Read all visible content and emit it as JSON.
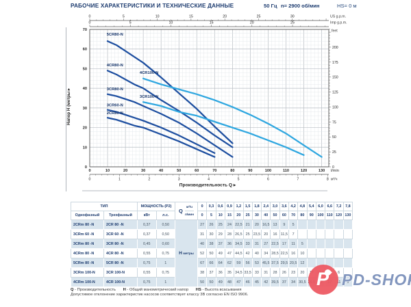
{
  "header": {
    "title": "РАБОЧИЕ ХАРАКТЕРИСТИКИ И ТЕХНИЧЕСКИЕ ДАННЫЕ",
    "frequency": "50 Гц",
    "speed": "n= 2900 об/мин",
    "suction": "HS= 0 м"
  },
  "chart": {
    "y_title": "Напор H (метры ▸",
    "x_title": "Производительность Q ▸",
    "unit_us": "US g.p.m.",
    "unit_imp": "Imp g.p.m.",
    "unit_feet": "feet",
    "unit_lmin": "l/min",
    "unit_m3h": "м³/ч"
  },
  "chart_data": {
    "type": "line",
    "x_unit": "l/min",
    "y_unit": "m",
    "x_range": [
      0,
      134
    ],
    "y_range": [
      0,
      70
    ],
    "x_ticks_lmin": [
      0,
      10,
      20,
      30,
      40,
      50,
      60,
      70,
      80,
      90,
      100,
      110,
      120,
      130
    ],
    "y_ticks_m": [
      0,
      10,
      20,
      30,
      40,
      50,
      60,
      70
    ],
    "secondary_axes": {
      "us_gpm_max": 30,
      "imp_gpm_max": 25,
      "feet_max": 200,
      "m3h_max": 8
    },
    "grid": "minor every 2 l/min and 2 m, major every 10",
    "series": [
      {
        "name": "5CR80-N",
        "color": "#1e4fa0",
        "label_at": [
          9.5,
          66.8
        ],
        "points": [
          [
            10,
            64
          ],
          [
            15,
            62
          ],
          [
            20,
            59
          ],
          [
            25,
            56
          ],
          [
            30,
            53
          ],
          [
            40,
            45.5
          ],
          [
            50,
            37.5
          ],
          [
            60,
            29.5
          ],
          [
            70,
            20.5
          ],
          [
            80,
            12
          ]
        ]
      },
      {
        "name": "4CR80-N",
        "color": "#1e4fa0",
        "label_at": [
          9.5,
          51.2
        ],
        "points": [
          [
            10,
            49
          ],
          [
            15,
            47
          ],
          [
            20,
            44.5
          ],
          [
            25,
            42
          ],
          [
            30,
            40
          ],
          [
            40,
            34
          ],
          [
            50,
            28.5
          ],
          [
            60,
            22.5
          ],
          [
            70,
            16
          ],
          [
            80,
            10
          ]
        ]
      },
      {
        "name": "3CR80-N",
        "color": "#1e4fa0",
        "label_at": [
          9.5,
          39.0
        ],
        "points": [
          [
            10,
            37
          ],
          [
            15,
            36
          ],
          [
            20,
            34.5
          ],
          [
            25,
            33
          ],
          [
            30,
            31
          ],
          [
            40,
            27
          ],
          [
            50,
            22.5
          ],
          [
            60,
            17
          ],
          [
            70,
            11
          ],
          [
            80,
            5
          ]
        ]
      },
      {
        "name": "3CR60-N",
        "color": "#1e4fa0",
        "label_at": [
          9.5,
          30.8
        ],
        "points": [
          [
            10,
            29
          ],
          [
            15,
            28
          ],
          [
            20,
            26.5
          ],
          [
            25,
            25
          ],
          [
            30,
            23.5
          ],
          [
            40,
            20
          ],
          [
            50,
            16
          ],
          [
            60,
            11.5
          ],
          [
            70,
            7
          ]
        ]
      },
      {
        "name": "2CR80-N",
        "color": "#1e4fa0",
        "label_at": [
          9.5,
          26.8
        ],
        "points": [
          [
            10,
            25
          ],
          [
            15,
            24
          ],
          [
            20,
            22.5
          ],
          [
            25,
            21
          ],
          [
            30,
            20
          ],
          [
            40,
            16.5
          ],
          [
            50,
            13
          ],
          [
            60,
            9
          ],
          [
            70,
            5
          ]
        ]
      },
      {
        "name": "4CR100-N",
        "color": "#2fa7e0",
        "label_at": [
          28,
          47.3
        ],
        "points": [
          [
            30,
            45
          ],
          [
            40,
            42
          ],
          [
            50,
            39.5
          ],
          [
            60,
            37
          ],
          [
            70,
            34
          ],
          [
            80,
            30.5
          ],
          [
            90,
            26.5
          ],
          [
            100,
            22
          ],
          [
            110,
            17
          ],
          [
            120,
            11
          ],
          [
            130,
            5
          ]
        ]
      },
      {
        "name": "3CR100-N",
        "color": "#2fa7e0",
        "label_at": [
          28,
          35.2
        ],
        "points": [
          [
            30,
            33
          ],
          [
            40,
            31
          ],
          [
            50,
            28
          ],
          [
            60,
            26
          ],
          [
            70,
            23
          ],
          [
            80,
            20
          ],
          [
            90,
            17
          ],
          [
            100,
            13.5
          ],
          [
            110,
            10
          ],
          [
            120,
            6
          ]
        ]
      }
    ]
  },
  "table": {
    "headers": {
      "type": "ТИП",
      "single": "Однофазный",
      "three": "Трехфазный",
      "power": "МОЩНОСТЬ (P2)",
      "kw": "кВт",
      "hp": "л.с.",
      "q": "Q",
      "m3h": "м³/ч",
      "lmin": "л/мин",
      "h_label": "H",
      "h_unit": "метры"
    },
    "q_m3h": [
      "0",
      "0,3",
      "0,6",
      "0,9",
      "1,2",
      "1,5",
      "1,8",
      "2,4",
      "3,0",
      "3,6",
      "4,2",
      "4,8",
      "5,4",
      "6,0",
      "6,6",
      "7,2",
      "7,8"
    ],
    "q_lmin": [
      "0",
      "5",
      "10",
      "15",
      "20",
      "25",
      "30",
      "40",
      "50",
      "60",
      "70",
      "80",
      "90",
      "100",
      "110",
      "120",
      "130"
    ],
    "rows": [
      {
        "single": "2CRm 80 -N",
        "three": "2CR 80 -N",
        "kw": "0,37",
        "hp": "0,50",
        "h": [
          "27",
          "26",
          "25",
          "24",
          "22,5",
          "21",
          "20",
          "16,5",
          "13",
          "9",
          "5",
          "",
          "",
          "",
          "",
          "",
          ""
        ]
      },
      {
        "single": "3CRm 60 -N",
        "three": "3CR 60 -N",
        "kw": "0,37",
        "hp": "0,50",
        "h": [
          "31",
          "30",
          "29",
          "28",
          "26,5",
          "25",
          "23,5",
          "20",
          "16",
          "11,5",
          "7",
          "",
          "",
          "",
          "",
          "",
          ""
        ]
      },
      {
        "single": "3CRm 80 -N",
        "three": "3CR 80 -N",
        "kw": "0,45",
        "hp": "0,60",
        "h": [
          "40",
          "38",
          "37",
          "36",
          "34,5",
          "33",
          "31",
          "27",
          "22,5",
          "17",
          "11",
          "5",
          "",
          "",
          "",
          "",
          ""
        ]
      },
      {
        "single": "4CRm 80 -N",
        "three": "4CR 80 -N",
        "kw": "0,55",
        "hp": "0,75",
        "h": [
          "52",
          "50",
          "49",
          "47",
          "44,5",
          "42",
          "40",
          "34",
          "28,5",
          "22,5",
          "16",
          "10",
          "",
          "",
          "",
          "",
          ""
        ]
      },
      {
        "single": "5CRm 80 -N",
        "three": "5CR 80 -N",
        "kw": "0,75",
        "hp": "1",
        "h": [
          "67",
          "66",
          "64",
          "62",
          "59",
          "56",
          "53",
          "45,5",
          "37,5",
          "29,5",
          "20,5",
          "12",
          "",
          "",
          "",
          "",
          ""
        ]
      },
      {
        "single": "3CRm 100-N",
        "three": "3CR 100-N",
        "kw": "0,55",
        "hp": "0,75",
        "h": [
          "38",
          "37",
          "36",
          "35",
          "34,5",
          "33,5",
          "33",
          "31",
          "28",
          "26",
          "23",
          "20",
          "17",
          "13,5",
          "10",
          "6",
          ""
        ]
      },
      {
        "single": "4CRm 100-N",
        "three": "4CR 100-N",
        "kw": "0,75",
        "hp": "1",
        "h": [
          "50",
          "50",
          "49",
          "48",
          "47",
          "46",
          "45",
          "42",
          "39,5",
          "37",
          "34",
          "30,5",
          "26,5",
          "22",
          "17",
          "11",
          "5"
        ]
      }
    ]
  },
  "footnote": {
    "q_key": "Q",
    "q_text": " - Производительность",
    "h_key": "H",
    "h_text": " - Общий манометрический напор",
    "hs_key": "HS",
    "hs_text": " - Высота всасывания",
    "line2": "Допустимое отклонение характеристик насосов соответствует классу 3B согласно EN ISO 9906."
  },
  "watermark": {
    "badge_letter": "P",
    "text": "PD-SHOP"
  }
}
